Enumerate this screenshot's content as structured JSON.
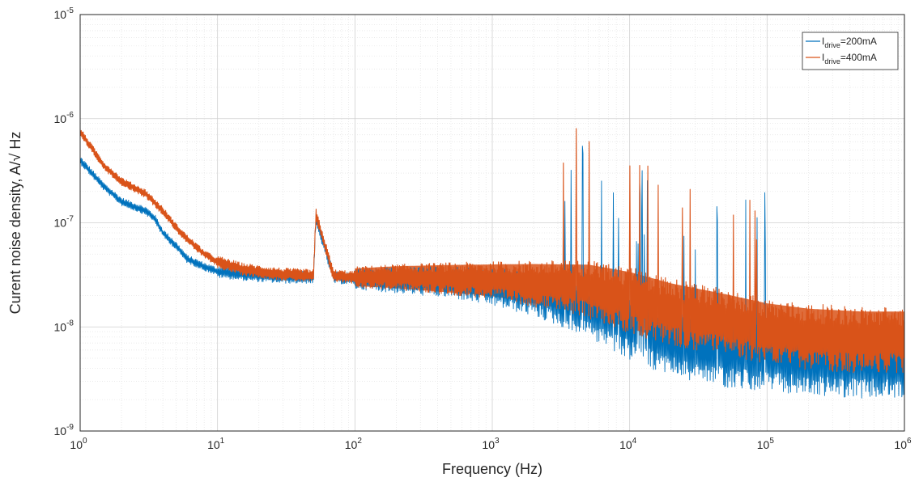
{
  "chart_data": {
    "type": "line",
    "xlabel": "Frequency (Hz)",
    "ylabel": "Curent noise density, A/√ Hz",
    "xscale": "log",
    "yscale": "log",
    "xlim": [
      1,
      1000000
    ],
    "ylim": [
      1e-09,
      1e-05
    ],
    "grid": true,
    "minor_grid": true,
    "legend_position": "top-right",
    "x_tick_labels": [
      {
        "base": "10",
        "exp": "0"
      },
      {
        "base": "10",
        "exp": "1"
      },
      {
        "base": "10",
        "exp": "2"
      },
      {
        "base": "10",
        "exp": "3"
      },
      {
        "base": "10",
        "exp": "4"
      },
      {
        "base": "10",
        "exp": "5"
      },
      {
        "base": "10",
        "exp": "6"
      }
    ],
    "y_tick_labels": [
      {
        "base": "10",
        "exp": "-9"
      },
      {
        "base": "10",
        "exp": "-8"
      },
      {
        "base": "10",
        "exp": "-7"
      },
      {
        "base": "10",
        "exp": "-6"
      },
      {
        "base": "10",
        "exp": "-5"
      }
    ],
    "series": [
      {
        "name": "I_drive=200mA",
        "legend_main": "I",
        "legend_sub": "drive",
        "legend_rest": "=200mA",
        "color": "#0072BD",
        "x": [
          1,
          1.5,
          2,
          3,
          3.5,
          4,
          5,
          6,
          8,
          10,
          15,
          20,
          30,
          50,
          52,
          70,
          100,
          200,
          500,
          1000,
          2000,
          5000,
          10000,
          20000,
          50000,
          100000,
          200000,
          500000,
          1000000
        ],
        "y": [
          4e-07,
          2.2e-07,
          1.6e-07,
          1.3e-07,
          1.1e-07,
          8e-08,
          6e-08,
          4.5e-08,
          3.8e-08,
          3.4e-08,
          3.2e-08,
          3.1e-08,
          3e-08,
          3e-08,
          1.1e-07,
          3e-08,
          2.9e-08,
          2.8e-08,
          2.7e-08,
          2.4e-08,
          2.1e-08,
          1.5e-08,
          1e-08,
          7e-09,
          5.5e-09,
          5e-09,
          4.6e-09,
          4.3e-09,
          4.2e-09
        ]
      },
      {
        "name": "I_drive=400mA",
        "legend_main": "I",
        "legend_sub": "drive",
        "legend_rest": "=400mA",
        "color": "#D95319",
        "x": [
          1,
          1.5,
          2,
          3,
          4,
          5,
          6,
          8,
          10,
          15,
          20,
          30,
          50,
          52,
          70,
          100,
          200,
          500,
          1000,
          2000,
          5000,
          10000,
          20000,
          50000,
          100000,
          200000,
          500000,
          1000000
        ],
        "y": [
          7.5e-07,
          3.5e-07,
          2.5e-07,
          1.9e-07,
          1.3e-07,
          9e-08,
          7e-08,
          5e-08,
          4.2e-08,
          3.6e-08,
          3.4e-08,
          3.2e-08,
          3.1e-08,
          1.2e-07,
          3.1e-08,
          3e-08,
          3e-08,
          2.9e-08,
          2.8e-08,
          2.6e-08,
          2.3e-08,
          1.8e-08,
          1.4e-08,
          1.1e-08,
          9e-09,
          8e-09,
          7.5e-09,
          7.5e-09
        ]
      }
    ]
  }
}
